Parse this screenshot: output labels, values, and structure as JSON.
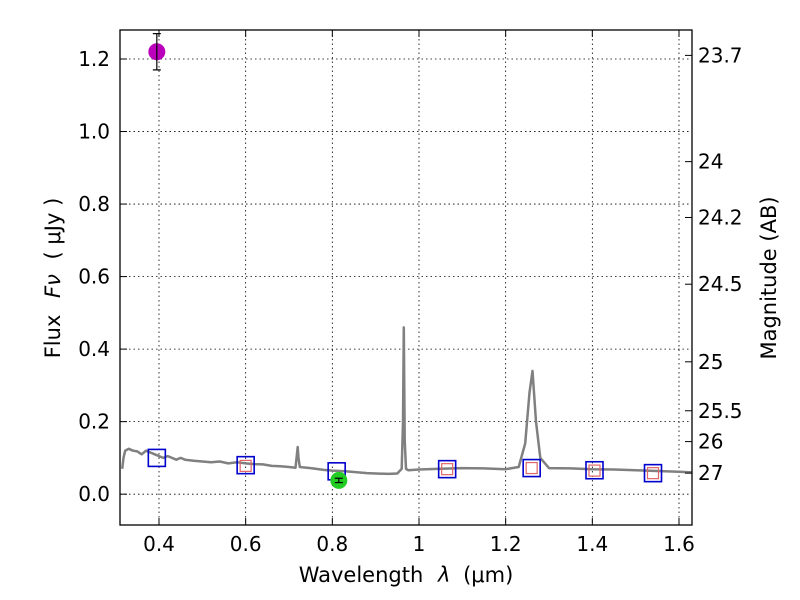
{
  "chart_data": {
    "type": "scatter",
    "title": "",
    "xlabel_text": "Wavelength",
    "xlabel_symbol": "λ",
    "xlabel_unit": "(μm)",
    "ylabel_text": "Flux",
    "ylabel_symbol": "Fν",
    "ylabel_unit": "( μJy )",
    "y2label": "Magnitude (AB)",
    "xlim": [
      0.31,
      1.63
    ],
    "ylim": [
      -0.085,
      1.28
    ],
    "grid": true,
    "x_ticks": [
      {
        "value": 0.4,
        "label": "0.4"
      },
      {
        "value": 0.6,
        "label": "0.6"
      },
      {
        "value": 0.8,
        "label": "0.8"
      },
      {
        "value": 1.0,
        "label": "1"
      },
      {
        "value": 1.2,
        "label": "1.2"
      },
      {
        "value": 1.4,
        "label": "1.4"
      },
      {
        "value": 1.6,
        "label": "1.6"
      }
    ],
    "y_ticks": [
      {
        "value": 0.0,
        "label": "0.0"
      },
      {
        "value": 0.2,
        "label": "0.2"
      },
      {
        "value": 0.4,
        "label": "0.4"
      },
      {
        "value": 0.6,
        "label": "0.6"
      },
      {
        "value": 0.8,
        "label": "0.8"
      },
      {
        "value": 1.0,
        "label": "1.0"
      },
      {
        "value": 1.2,
        "label": "1.2"
      }
    ],
    "y2_ticks": [
      {
        "flux": 1.21,
        "label": "23.7"
      },
      {
        "flux": 0.917,
        "label": "24"
      },
      {
        "flux": 0.763,
        "label": "24.2"
      },
      {
        "flux": 0.579,
        "label": "24.5"
      },
      {
        "flux": 0.365,
        "label": "25"
      },
      {
        "flux": 0.23,
        "label": "25.5"
      },
      {
        "flux": 0.145,
        "label": "26"
      },
      {
        "flux": 0.058,
        "label": "27"
      }
    ],
    "series": [
      {
        "name": "model_spectrum",
        "kind": "line",
        "color": "#808080",
        "x": [
          0.315,
          0.318,
          0.322,
          0.33,
          0.34,
          0.35,
          0.36,
          0.37,
          0.38,
          0.39,
          0.4,
          0.41,
          0.42,
          0.43,
          0.44,
          0.45,
          0.46,
          0.48,
          0.5,
          0.52,
          0.54,
          0.56,
          0.58,
          0.6,
          0.62,
          0.64,
          0.66,
          0.68,
          0.7,
          0.715,
          0.72,
          0.722,
          0.725,
          0.73,
          0.75,
          0.78,
          0.8,
          0.83,
          0.86,
          0.88,
          0.9,
          0.93,
          0.95,
          0.96,
          0.963,
          0.965,
          0.967,
          0.97,
          0.975,
          1.0,
          1.05,
          1.1,
          1.15,
          1.2,
          1.23,
          1.245,
          1.255,
          1.262,
          1.27,
          1.28,
          1.3,
          1.35,
          1.4,
          1.45,
          1.5,
          1.55,
          1.6,
          1.63
        ],
        "y": [
          0.07,
          0.1,
          0.12,
          0.125,
          0.12,
          0.118,
          0.11,
          0.12,
          0.115,
          0.11,
          0.105,
          0.1,
          0.105,
          0.1,
          0.095,
          0.1,
          0.095,
          0.092,
          0.09,
          0.088,
          0.09,
          0.085,
          0.088,
          0.085,
          0.083,
          0.082,
          0.078,
          0.077,
          0.075,
          0.073,
          0.13,
          0.1,
          0.075,
          0.074,
          0.072,
          0.067,
          0.065,
          0.063,
          0.06,
          0.058,
          0.057,
          0.056,
          0.057,
          0.07,
          0.2,
          0.46,
          0.15,
          0.07,
          0.066,
          0.068,
          0.07,
          0.072,
          0.071,
          0.069,
          0.075,
          0.14,
          0.28,
          0.34,
          0.2,
          0.1,
          0.072,
          0.071,
          0.069,
          0.068,
          0.066,
          0.064,
          0.062,
          0.06
        ]
      },
      {
        "name": "photometry_squares",
        "kind": "open-square",
        "color": "#0000cc",
        "x": [
          0.395,
          0.6,
          0.81,
          1.065,
          1.26,
          1.405,
          1.54
        ],
        "y": [
          0.1,
          0.08,
          0.063,
          0.069,
          0.072,
          0.066,
          0.058
        ]
      },
      {
        "name": "model_band_squares",
        "kind": "open-square-small",
        "color": "#e06666",
        "x": [
          0.6,
          1.065,
          1.26,
          1.405,
          1.54
        ],
        "y": [
          0.078,
          0.069,
          0.072,
          0.065,
          0.058
        ]
      },
      {
        "name": "purple_detection",
        "kind": "point-errorbar",
        "color": "#bb00bb",
        "x": [
          0.395
        ],
        "y": [
          1.22
        ],
        "yerr": [
          0.05
        ]
      },
      {
        "name": "green_detection",
        "kind": "point-errorbar",
        "color": "#22cc22",
        "x": [
          0.815
        ],
        "y": [
          0.038
        ],
        "yerr": [
          0.006
        ]
      }
    ]
  }
}
